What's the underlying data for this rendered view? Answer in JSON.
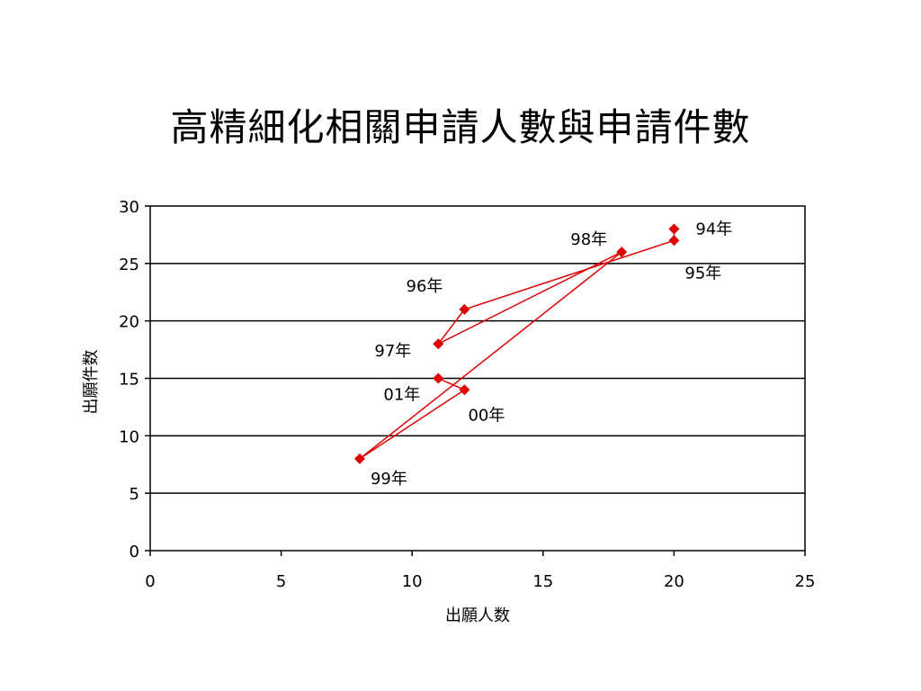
{
  "slide": {
    "title": "高精細化相關申請人數與申請件數"
  },
  "chart_data": {
    "type": "scatter",
    "connected": true,
    "xlabel": "出願人数",
    "ylabel": "出願件数",
    "xlim": [
      0,
      25
    ],
    "ylim": [
      0,
      30
    ],
    "x_ticks": [
      0,
      5,
      10,
      15,
      20,
      25
    ],
    "y_ticks": [
      0,
      5,
      10,
      15,
      20,
      25,
      30
    ],
    "grid": "horizontal",
    "line_color": "#e00000",
    "marker": "diamond",
    "points": [
      {
        "label": "94年",
        "x": 20,
        "y": 28
      },
      {
        "label": "95年",
        "x": 20,
        "y": 27
      },
      {
        "label": "96年",
        "x": 12,
        "y": 21
      },
      {
        "label": "97年",
        "x": 11,
        "y": 18
      },
      {
        "label": "98年",
        "x": 18,
        "y": 26
      },
      {
        "label": "99年",
        "x": 8,
        "y": 8
      },
      {
        "label": "00年",
        "x": 12,
        "y": 14
      },
      {
        "label": "01年",
        "x": 11,
        "y": 15
      }
    ]
  }
}
